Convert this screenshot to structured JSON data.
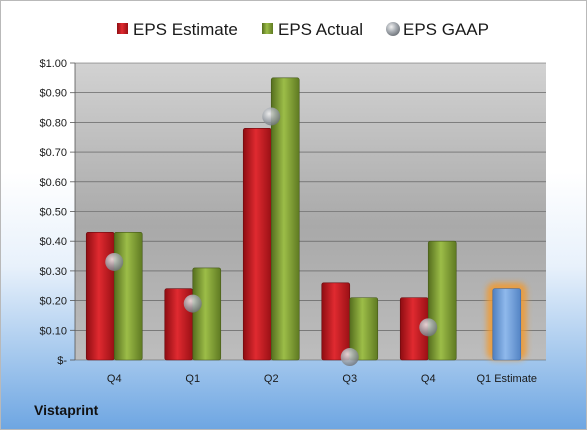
{
  "company": "Vistaprint",
  "chart_data": {
    "type": "bar",
    "categories": [
      "Q4",
      "Q1",
      "Q2",
      "Q3",
      "Q4",
      "Q1 Estimate"
    ],
    "series": [
      {
        "name": "EPS Estimate",
        "values": [
          0.43,
          0.24,
          0.78,
          0.26,
          0.21,
          null
        ],
        "color": "#c0141a"
      },
      {
        "name": "EPS Actual",
        "values": [
          0.43,
          0.31,
          0.95,
          0.21,
          0.4,
          null
        ],
        "color": "#7a9a32"
      },
      {
        "name": "EPS GAAP",
        "values": [
          0.33,
          0.19,
          0.82,
          0.01,
          0.11,
          null
        ],
        "color": "#9aa0a8",
        "style": "marker"
      },
      {
        "name": "",
        "values": [
          null,
          null,
          null,
          null,
          null,
          0.24
        ],
        "color": "#6f9fd8",
        "style": "highlighted-estimate"
      }
    ],
    "yticks": [
      "$-",
      "$0.10",
      "$0.20",
      "$0.30",
      "$0.40",
      "$0.50",
      "$0.60",
      "$0.70",
      "$0.80",
      "$0.90",
      "$1.00"
    ],
    "ylim": [
      0,
      1.0
    ],
    "grid": true,
    "legend_position": "top"
  }
}
